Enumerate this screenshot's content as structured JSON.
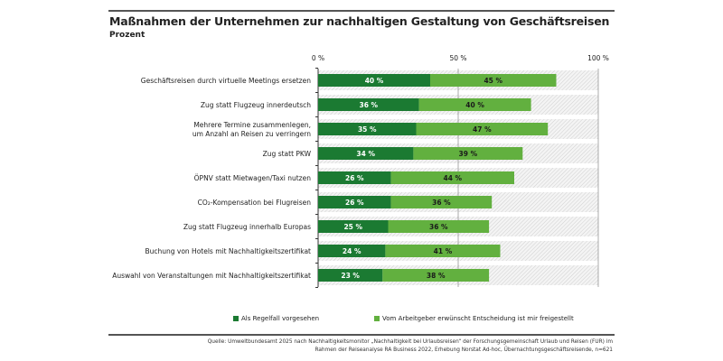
{
  "title": "Maßnahmen der Unternehmen zur nachhaltigen Gestaltung von Geschäftsreisen",
  "subtitle": "Prozent",
  "source": "Quelle: Umweltbundesamt 2025 nach Nachhaltigkeitsmonitor „Nachhaltigkeit bei Urlaubsreisen“ der Forschungsgemeinschaft Urlaub und Reisen (FUR) im Rahmen der Reiseanalyse RA Business 2022, Erhebung Norstat Ad-hoc, Übernachtungsgeschäftsreisende, n=621",
  "chart_data": {
    "type": "bar",
    "orientation": "horizontal",
    "stacked": true,
    "xlim": [
      0,
      100
    ],
    "x_ticks": [
      "0 %",
      "50 %",
      "100 %"
    ],
    "x_tick_values": [
      0,
      50,
      100
    ],
    "grid": true,
    "legend_placement": "bottom",
    "categories": [
      [
        "Geschäftsreisen durch virtuelle Meetings ersetzen"
      ],
      [
        "Zug statt Flugzeug innerdeutsch"
      ],
      [
        "Mehrere Termine zusammenlegen,",
        "um Anzahl an Reisen zu verringern"
      ],
      [
        "Zug statt PKW"
      ],
      [
        "ÖPNV statt Mietwagen/Taxi nutzen"
      ],
      [
        "CO₂-Kompensation bei Flugreisen"
      ],
      [
        "Zug statt Flugzeug innerhalb Europas"
      ],
      [
        "Buchung von Hotels mit Nachhaltigkeitszertifikat"
      ],
      [
        "Auswahl von Veranstaltungen mit Nachhaltigkeitszertifikat"
      ]
    ],
    "series": [
      {
        "name": "Als Regelfall vorgesehen",
        "color": "#1b7a32",
        "values": [
          40,
          36,
          35,
          34,
          26,
          26,
          25,
          24,
          23
        ]
      },
      {
        "name": "Vom Arbeitgeber erwünscht Entscheidung ist mir freigestellt",
        "color": "#62b03f",
        "values": [
          45,
          40,
          47,
          39,
          44,
          36,
          36,
          41,
          38
        ]
      }
    ]
  }
}
